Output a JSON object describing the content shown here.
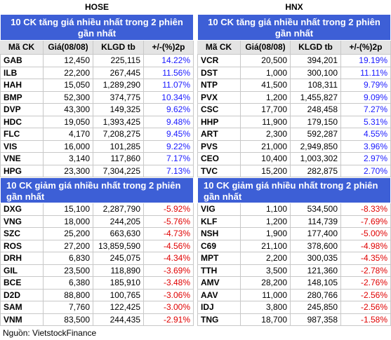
{
  "markets": [
    {
      "name": "HOSE",
      "gainers": {
        "title": "10 CK tăng giá nhiều nhất trong 2 phiên gần nhất",
        "color": "#1a1aff",
        "columns": [
          "Mã CK",
          "Giá(08/08)",
          "KLGD tb",
          "+/-(%)2p"
        ],
        "rows": [
          [
            "GAB",
            "12,450",
            "225,115",
            "14.22%"
          ],
          [
            "ILB",
            "22,200",
            "267,445",
            "11.56%"
          ],
          [
            "HAH",
            "15,050",
            "1,289,290",
            "11.07%"
          ],
          [
            "BMP",
            "52,300",
            "374,775",
            "10.34%"
          ],
          [
            "DVP",
            "43,300",
            "149,325",
            "9.62%"
          ],
          [
            "HDC",
            "19,050",
            "1,393,425",
            "9.48%"
          ],
          [
            "FLC",
            "4,170",
            "7,208,275",
            "9.45%"
          ],
          [
            "VIS",
            "16,000",
            "101,285",
            "9.22%"
          ],
          [
            "VNE",
            "3,140",
            "117,860",
            "7.17%"
          ],
          [
            "HPG",
            "23,300",
            "7,304,225",
            "7.13%"
          ]
        ]
      },
      "losers": {
        "title": "10 CK giảm giá nhiều nhất trong 2 phiên gần nhất",
        "color": "#e00000",
        "rows": [
          [
            "DXG",
            "15,100",
            "2,287,790",
            "-5.92%"
          ],
          [
            "VNG",
            "18,000",
            "244,205",
            "-5.76%"
          ],
          [
            "SZC",
            "25,200",
            "663,630",
            "-4.73%"
          ],
          [
            "ROS",
            "27,200",
            "13,859,590",
            "-4.56%"
          ],
          [
            "DRH",
            "6,830",
            "245,075",
            "-4.34%"
          ],
          [
            "GIL",
            "23,500",
            "118,890",
            "-3.69%"
          ],
          [
            "BCE",
            "6,380",
            "185,910",
            "-3.48%"
          ],
          [
            "D2D",
            "88,800",
            "100,765",
            "-3.06%"
          ],
          [
            "SAM",
            "7,760",
            "122,425",
            "-3.00%"
          ],
          [
            "VNM",
            "83,500",
            "244,435",
            "-2.91%"
          ]
        ]
      }
    },
    {
      "name": "HNX",
      "gainers": {
        "title": "10 CK tăng giá nhiều nhất trong 2 phiên gần nhất",
        "color": "#1a1aff",
        "columns": [
          "Mã CK",
          "Giá(08/08)",
          "KLGD tb",
          "+/-(%)2p"
        ],
        "rows": [
          [
            "VCR",
            "20,500",
            "394,201",
            "19.19%"
          ],
          [
            "DST",
            "1,000",
            "300,100",
            "11.11%"
          ],
          [
            "NTP",
            "41,500",
            "108,311",
            "9.79%"
          ],
          [
            "PVX",
            "1,200",
            "1,455,827",
            "9.09%"
          ],
          [
            "CSC",
            "17,700",
            "248,458",
            "7.27%"
          ],
          [
            "HHP",
            "11,900",
            "179,150",
            "5.31%"
          ],
          [
            "ART",
            "2,300",
            "592,287",
            "4.55%"
          ],
          [
            "PVS",
            "21,000",
            "2,949,850",
            "3.96%"
          ],
          [
            "CEO",
            "10,400",
            "1,003,302",
            "2.97%"
          ],
          [
            "TVC",
            "15,200",
            "282,875",
            "2.70%"
          ]
        ]
      },
      "losers": {
        "title": "10 CK giảm giá nhiều nhất trong 2 phiên gần nhất",
        "color": "#e00000",
        "rows": [
          [
            "VIG",
            "1,100",
            "534,500",
            "-8.33%"
          ],
          [
            "KLF",
            "1,200",
            "114,739",
            "-7.69%"
          ],
          [
            "NSH",
            "1,900",
            "177,400",
            "-5.00%"
          ],
          [
            "C69",
            "21,100",
            "378,600",
            "-4.98%"
          ],
          [
            "MPT",
            "2,200",
            "300,035",
            "-4.35%"
          ],
          [
            "TTH",
            "3,500",
            "121,360",
            "-2.78%"
          ],
          [
            "AMV",
            "28,200",
            "148,105",
            "-2.76%"
          ],
          [
            "AAV",
            "11,000",
            "280,766",
            "-2.56%"
          ],
          [
            "IDJ",
            "3,800",
            "245,850",
            "-2.56%"
          ],
          [
            "TNG",
            "18,700",
            "987,358",
            "-1.58%"
          ]
        ]
      }
    }
  ],
  "source": "Nguồn: VietstockFinance"
}
